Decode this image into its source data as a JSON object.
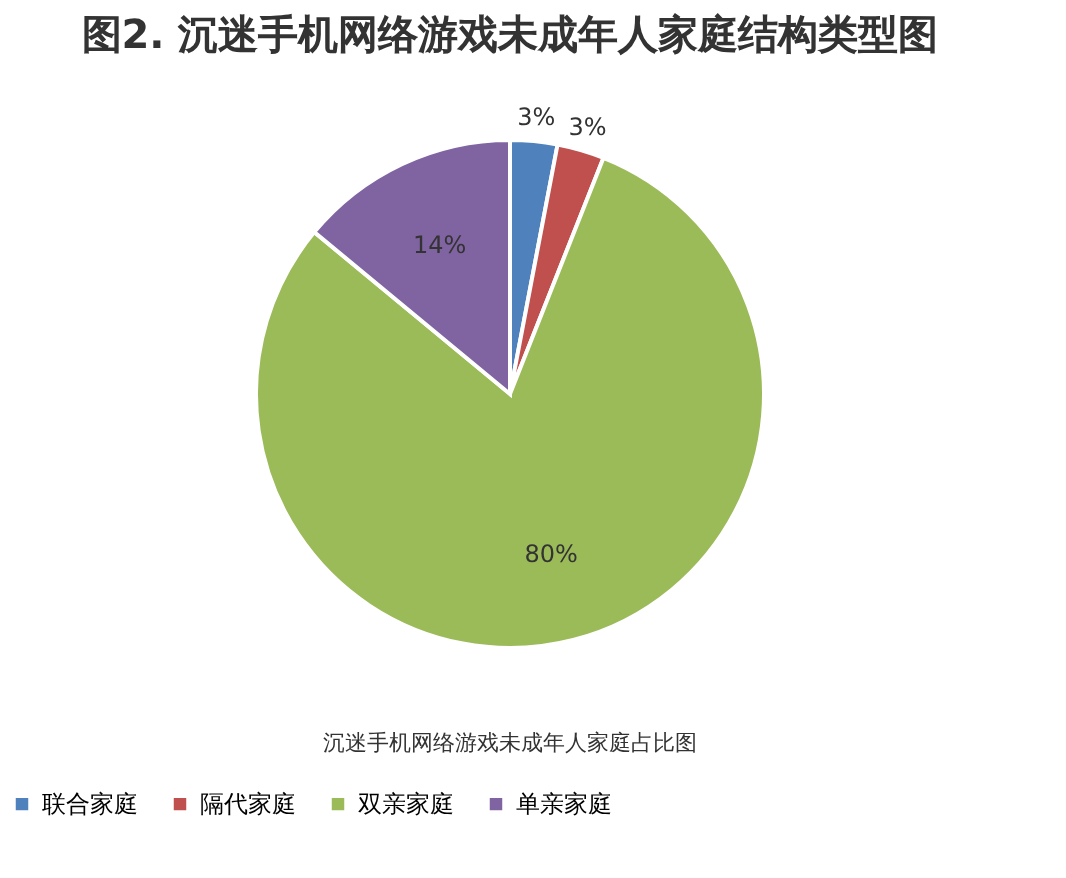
{
  "chart_data": {
    "type": "pie",
    "title": "图2. 沉迷手机网络游戏未成年人家庭结构类型图",
    "categories": [
      "联合家庭",
      "隔代家庭",
      "双亲家庭",
      "单亲家庭"
    ],
    "values": [
      3,
      3,
      80,
      14
    ],
    "colors": [
      "#4f81bd",
      "#c0504d",
      "#9bbb59",
      "#8064a2"
    ],
    "value_labels": [
      "3%",
      "3%",
      "80%",
      "14%"
    ],
    "legend": "bottom",
    "annotations": [
      "沉迷手机网络游戏未成年人家庭占比图"
    ]
  }
}
